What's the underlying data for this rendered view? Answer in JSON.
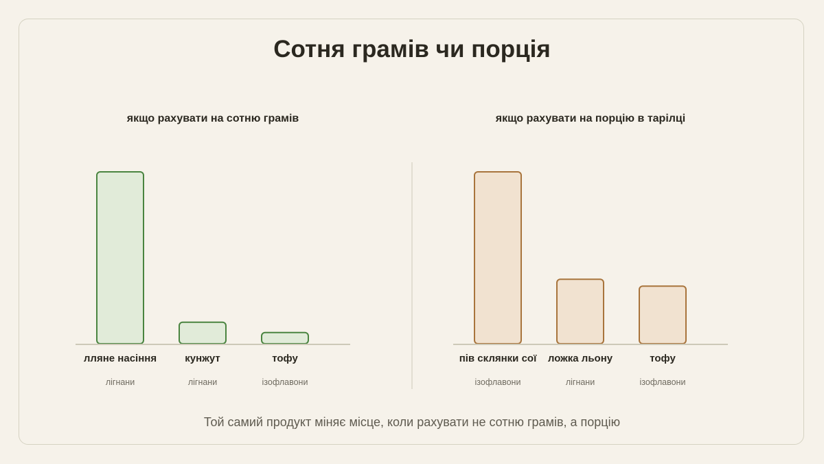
{
  "title": "Сотня грамів чи порція",
  "footer": "Той самий продукт міняє місце, коли рахувати не сотню грамів, а порцію",
  "colors": {
    "green_fill": "#e1ebd9",
    "green_stroke": "#4a8440",
    "tan_fill": "#f1e2d0",
    "tan_stroke": "#a8743c",
    "baseline": "#cdc9b8",
    "divider": "#d5d2c2"
  },
  "chart_data": [
    {
      "type": "bar",
      "title": "якщо рахувати на сотню грамів",
      "categories": [
        "лляне насіння",
        "кунжут",
        "тофу"
      ],
      "sublabels": [
        "лігнани",
        "лігнани",
        "ізофлавони"
      ],
      "values": [
        100,
        12.5,
        6.5
      ],
      "ylim": [
        0,
        100
      ],
      "color": "green"
    },
    {
      "type": "bar",
      "title": "якщо рахувати на порцію в тарілці",
      "categories": [
        "пів склянки сої",
        "ложка льону",
        "тофу"
      ],
      "sublabels": [
        "ізофлавони",
        "лігнани",
        "ізофлавони"
      ],
      "values": [
        100,
        37.5,
        33.5
      ],
      "ylim": [
        0,
        100
      ],
      "color": "tan"
    }
  ]
}
